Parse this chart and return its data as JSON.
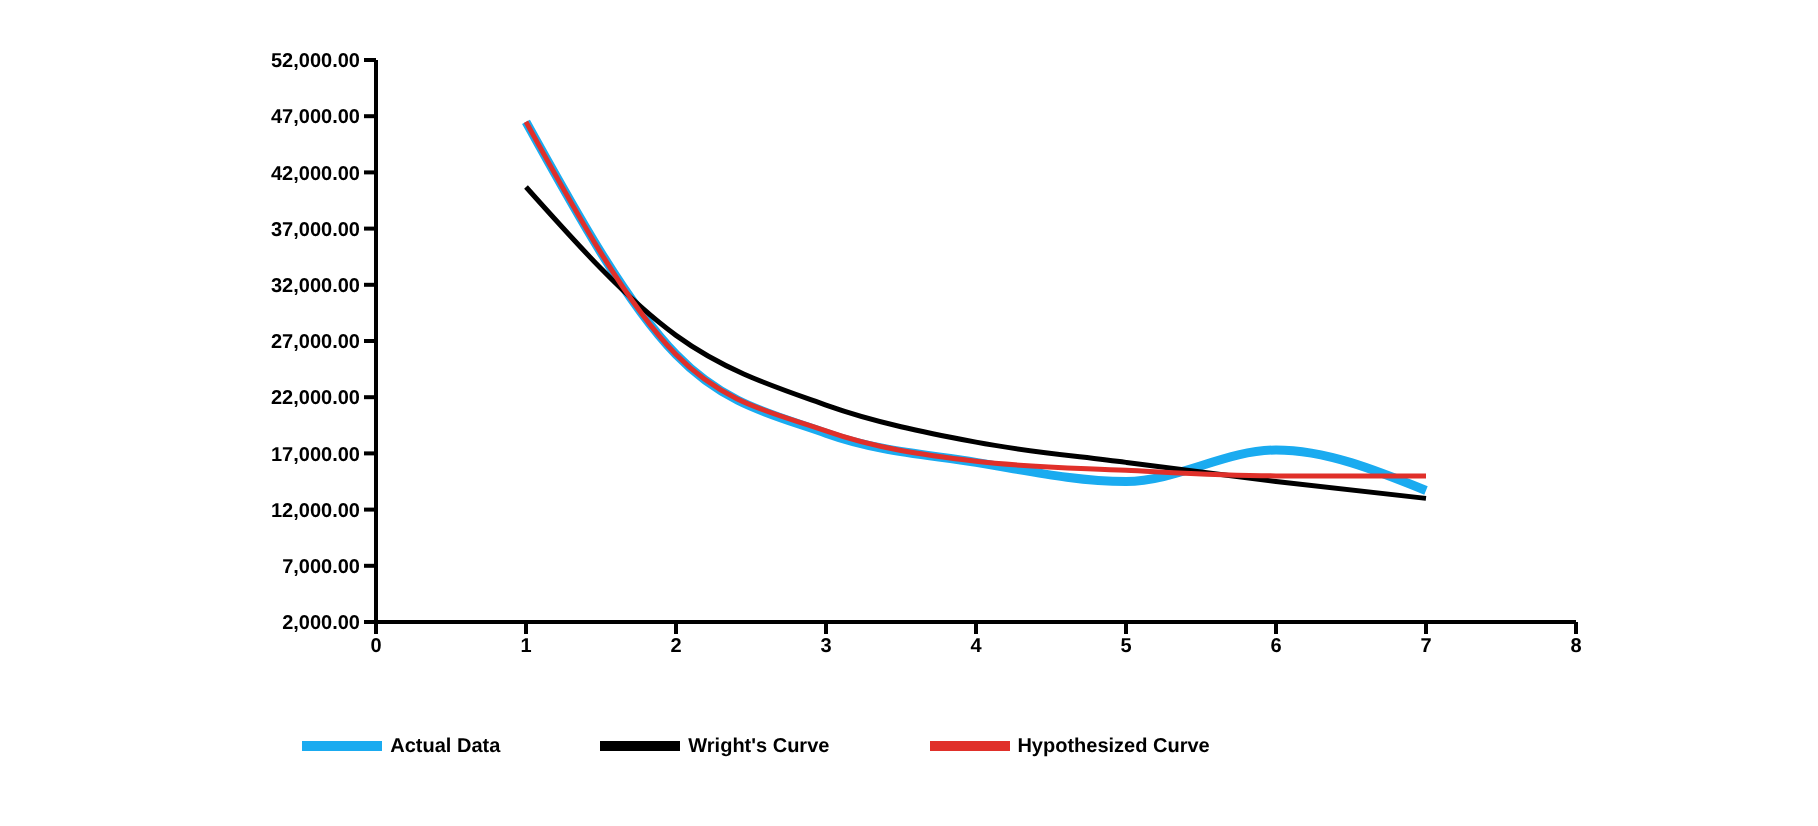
{
  "chart_data": {
    "type": "line",
    "x": [
      1,
      2,
      3,
      4,
      5,
      6,
      7
    ],
    "series": [
      {
        "name": "Actual Data",
        "color": "#1aabf0",
        "values": [
          46500,
          25800,
          18800,
          16200,
          14500,
          17300,
          13700
        ]
      },
      {
        "name": "Wright's Curve",
        "color": "#000000",
        "values": [
          40700,
          27500,
          21300,
          18000,
          16200,
          14500,
          13000
        ]
      },
      {
        "name": "Hypothesized Curve",
        "color": "#e0302a",
        "values": [
          46500,
          25800,
          19000,
          16300,
          15500,
          15000,
          15000
        ]
      }
    ],
    "xlim": [
      0,
      8
    ],
    "xticks": [
      0,
      1,
      2,
      3,
      4,
      5,
      6,
      7,
      8
    ],
    "ylim": [
      2000,
      52000
    ],
    "yticks": [
      {
        "value": 2000,
        "label": "2,000.00"
      },
      {
        "value": 7000,
        "label": "7,000.00"
      },
      {
        "value": 12000,
        "label": "12,000.00"
      },
      {
        "value": 17000,
        "label": "17,000.00"
      },
      {
        "value": 22000,
        "label": "22,000.00"
      },
      {
        "value": 27000,
        "label": "27,000.00"
      },
      {
        "value": 32000,
        "label": "32,000.00"
      },
      {
        "value": 37000,
        "label": "37,000.00"
      },
      {
        "value": 42000,
        "label": "42,000.00"
      },
      {
        "value": 47000,
        "label": "47,000.00"
      },
      {
        "value": 52000,
        "label": "52,000.00"
      }
    ],
    "legend": "bottom",
    "marker": "none",
    "line_style": "solid"
  }
}
